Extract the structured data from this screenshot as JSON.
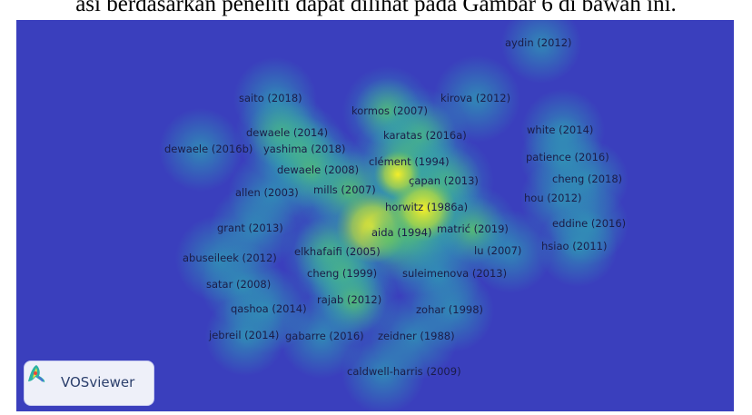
{
  "caption": "asi berdasarkan peneliti dapat dilihat pada Gambar 6 di bawah ini.",
  "logo": {
    "text": "VOSviewer"
  },
  "colors": {
    "background": "#3a3fbd",
    "low_density": "#2b8fb0",
    "mid_density": "#6cc35c",
    "high_density": "#f1ee2a",
    "label": "#1b1d48"
  },
  "nodes": [
    {
      "label": "aydin (2012)",
      "density": 0.35
    },
    {
      "label": "saito (2018)",
      "density": 0.4
    },
    {
      "label": "kirova (2012)",
      "density": 0.45
    },
    {
      "label": "kormos (2007)",
      "density": 0.5
    },
    {
      "label": "dewaele (2014)",
      "density": 0.55
    },
    {
      "label": "karatas (2016a)",
      "density": 0.6
    },
    {
      "label": "white (2014)",
      "density": 0.4
    },
    {
      "label": "dewaele (2016b)",
      "density": 0.4
    },
    {
      "label": "yashima (2018)",
      "density": 0.55
    },
    {
      "label": "patience (2016)",
      "density": 0.4
    },
    {
      "label": "clément (1994)",
      "density": 0.75
    },
    {
      "label": "dewaele (2008)",
      "density": 0.65
    },
    {
      "label": "cheng (2018)",
      "density": 0.35
    },
    {
      "label": "çapan (2013)",
      "density": 0.6
    },
    {
      "label": "allen (2003)",
      "density": 0.45
    },
    {
      "label": "mills (2007)",
      "density": 0.7
    },
    {
      "label": "hou (2012)",
      "density": 0.35
    },
    {
      "label": "horwitz (1986a)",
      "density": 1.0
    },
    {
      "label": "grant (2013)",
      "density": 0.45
    },
    {
      "label": "aida (1994)",
      "density": 1.0
    },
    {
      "label": "matrić (2019)",
      "density": 0.5
    },
    {
      "label": "eddine (2016)",
      "density": 0.35
    },
    {
      "label": "hsiao (2011)",
      "density": 0.35
    },
    {
      "label": "abuseileek (2012)",
      "density": 0.45
    },
    {
      "label": "elkhafaifi (2005)",
      "density": 0.6
    },
    {
      "label": "lu (2007)",
      "density": 0.4
    },
    {
      "label": "cheng (1999)",
      "density": 0.55
    },
    {
      "label": "suleimenova (2013)",
      "density": 0.45
    },
    {
      "label": "satar (2008)",
      "density": 0.4
    },
    {
      "label": "rajab (2012)",
      "density": 0.5
    },
    {
      "label": "qashoa (2014)",
      "density": 0.45
    },
    {
      "label": "zohar (1998)",
      "density": 0.4
    },
    {
      "label": "jebreil (2014)",
      "density": 0.35
    },
    {
      "label": "gabarre (2016)",
      "density": 0.4
    },
    {
      "label": "zeidner (1988)",
      "density": 0.45
    },
    {
      "label": "caldwell-harris (2009)",
      "density": 0.4
    }
  ]
}
